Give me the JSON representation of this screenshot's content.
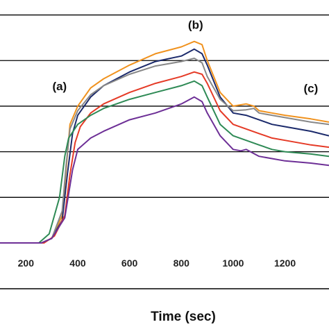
{
  "chart_data": {
    "type": "line",
    "title": "",
    "xlabel": "Time (sec)",
    "ylabel": "",
    "xlim": [
      100,
      1370
    ],
    "ylim": [
      0,
      5.1
    ],
    "xticks": [
      200,
      400,
      600,
      800,
      1000,
      1200
    ],
    "grid_y": [
      1,
      2,
      3,
      4,
      5
    ],
    "annotations": [
      {
        "text": "(a)",
        "x": 330,
        "y": 3.35
      },
      {
        "text": "(b)",
        "x": 855,
        "y": 4.7
      },
      {
        "text": "(c)",
        "x": 1300,
        "y": 3.3
      }
    ],
    "series": [
      {
        "color": "#f0921e",
        "x": [
          100,
          260,
          300,
          340,
          355,
          370,
          400,
          450,
          500,
          600,
          700,
          800,
          850,
          880,
          900,
          950,
          1000,
          1050,
          1080,
          1100,
          1150,
          1200,
          1300,
          1370
        ],
        "y": [
          0,
          0,
          0.1,
          0.6,
          1.6,
          2.6,
          3.0,
          3.4,
          3.6,
          3.9,
          4.15,
          4.3,
          4.42,
          4.35,
          4.0,
          3.3,
          3.0,
          3.05,
          3.0,
          2.9,
          2.85,
          2.8,
          2.72,
          2.65
        ]
      },
      {
        "color": "#1b2a6b",
        "x": [
          100,
          260,
          300,
          340,
          360,
          380,
          400,
          450,
          500,
          600,
          700,
          800,
          850,
          880,
          900,
          950,
          1000,
          1050,
          1100,
          1150,
          1200,
          1300,
          1370
        ],
        "y": [
          0,
          0,
          0.1,
          0.5,
          1.5,
          2.4,
          2.8,
          3.2,
          3.45,
          3.75,
          3.98,
          4.1,
          4.25,
          4.15,
          3.9,
          3.2,
          2.85,
          2.8,
          2.7,
          2.6,
          2.55,
          2.45,
          2.35
        ]
      },
      {
        "color": "#888888",
        "x": [
          100,
          260,
          300,
          340,
          355,
          370,
          400,
          450,
          500,
          600,
          700,
          800,
          850,
          880,
          900,
          950,
          1000,
          1050,
          1080,
          1100,
          1150,
          1200,
          1300,
          1370
        ],
        "y": [
          0,
          0,
          0.1,
          0.7,
          1.7,
          2.5,
          2.9,
          3.25,
          3.45,
          3.7,
          3.88,
          3.98,
          4.05,
          3.95,
          3.65,
          3.15,
          2.9,
          2.92,
          2.95,
          2.85,
          2.8,
          2.75,
          2.65,
          2.6
        ]
      },
      {
        "color": "#e53a26",
        "x": [
          100,
          270,
          310,
          350,
          370,
          390,
          410,
          450,
          500,
          600,
          700,
          800,
          850,
          880,
          900,
          950,
          1000,
          1050,
          1100,
          1150,
          1200,
          1300,
          1370
        ],
        "y": [
          0,
          0,
          0.15,
          0.6,
          1.5,
          2.2,
          2.55,
          2.85,
          3.05,
          3.3,
          3.5,
          3.65,
          3.75,
          3.7,
          3.5,
          2.9,
          2.6,
          2.5,
          2.4,
          2.3,
          2.25,
          2.15,
          2.1
        ]
      },
      {
        "color": "#2e8a55",
        "x": [
          100,
          250,
          290,
          330,
          350,
          365,
          400,
          450,
          500,
          600,
          700,
          800,
          850,
          880,
          900,
          950,
          1000,
          1050,
          1100,
          1150,
          1200,
          1300,
          1370
        ],
        "y": [
          0,
          0,
          0.2,
          1.0,
          1.9,
          2.3,
          2.6,
          2.8,
          2.95,
          3.15,
          3.3,
          3.45,
          3.55,
          3.45,
          3.2,
          2.6,
          2.35,
          2.25,
          2.15,
          2.05,
          2.0,
          1.95,
          1.9
        ]
      },
      {
        "color": "#6d2f96",
        "x": [
          100,
          260,
          300,
          350,
          380,
          400,
          450,
          500,
          600,
          700,
          800,
          850,
          880,
          900,
          950,
          1000,
          1030,
          1050,
          1100,
          1150,
          1200,
          1300,
          1370
        ],
        "y": [
          0,
          0,
          0.1,
          0.55,
          1.6,
          2.05,
          2.3,
          2.45,
          2.7,
          2.85,
          3.05,
          3.2,
          3.1,
          2.85,
          2.35,
          2.05,
          2.02,
          2.05,
          1.9,
          1.85,
          1.8,
          1.75,
          1.7
        ]
      }
    ]
  }
}
